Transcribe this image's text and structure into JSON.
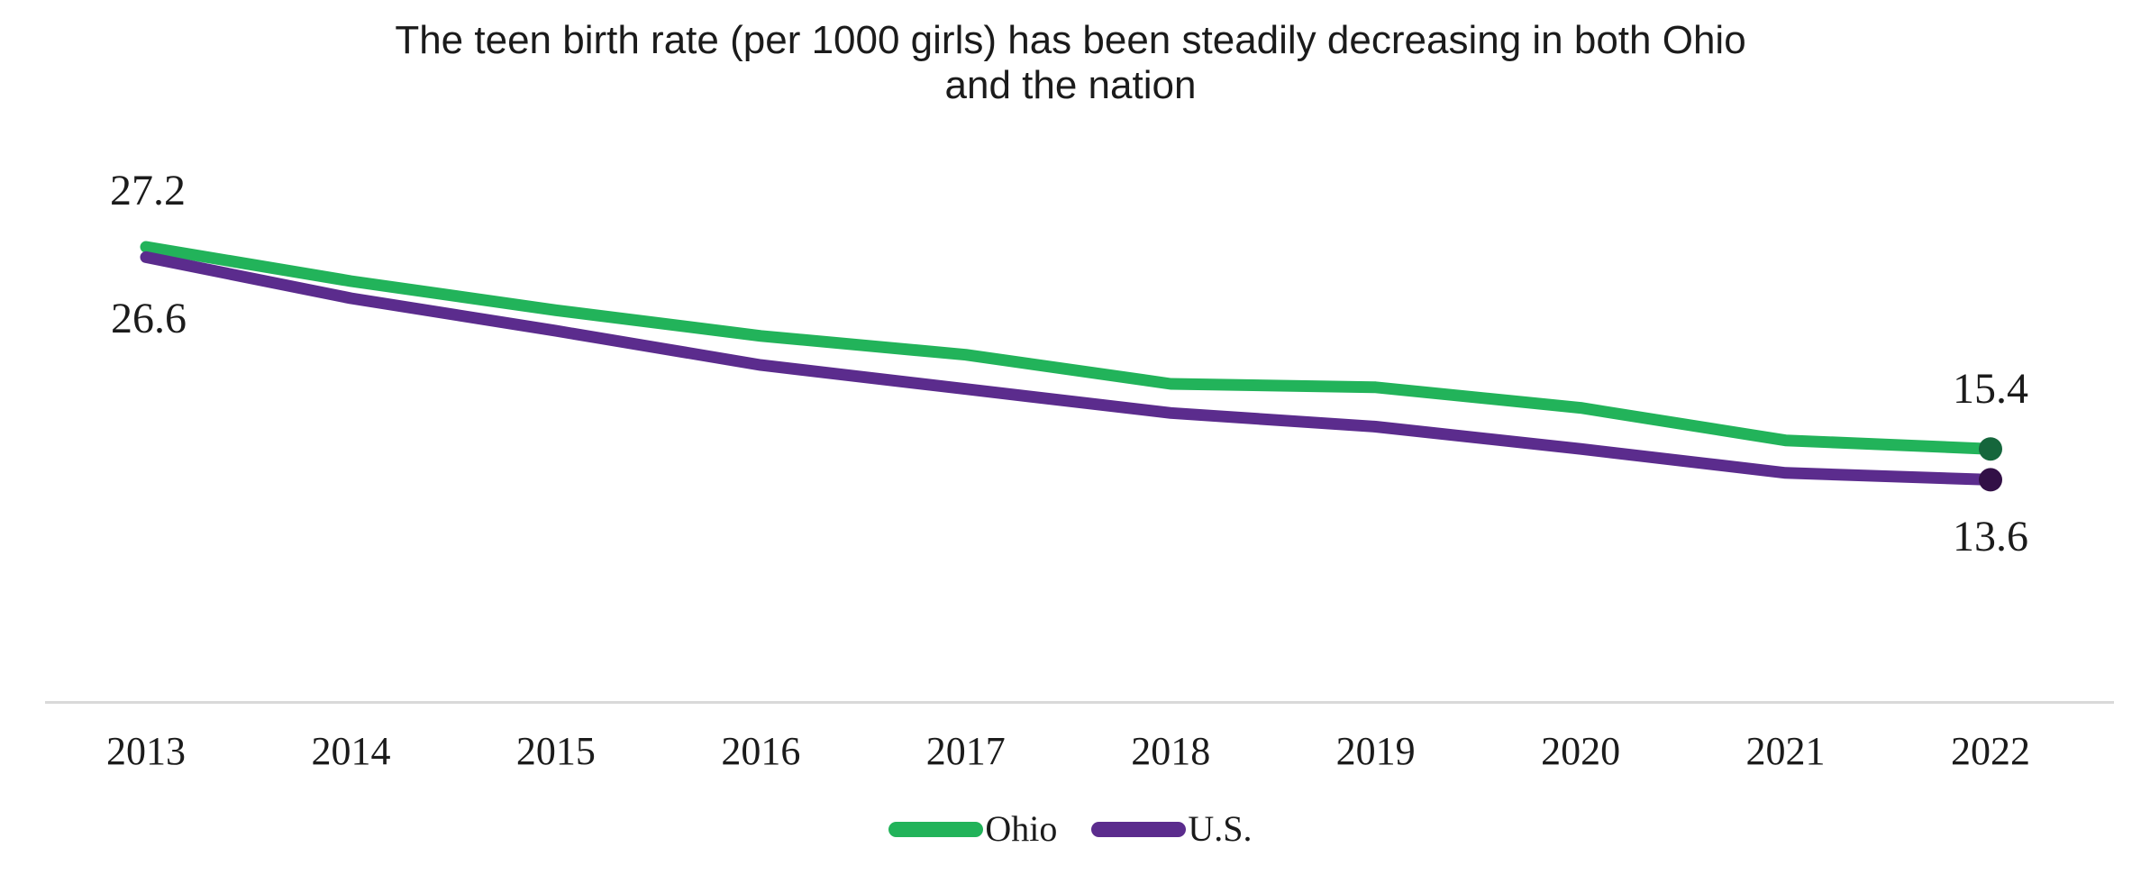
{
  "title": {
    "line1": "The teen birth rate (per 1000 girls) has been steadily decreasing in both Ohio",
    "line2": "and the nation"
  },
  "chart_data": {
    "type": "line",
    "x": [
      2013,
      2014,
      2015,
      2016,
      2017,
      2018,
      2019,
      2020,
      2021,
      2022
    ],
    "series": [
      {
        "name": "Ohio",
        "color": "#22B35A",
        "endpoint_color": "#15663C",
        "values": [
          27.2,
          25.2,
          23.5,
          22.0,
          20.9,
          19.2,
          19.0,
          17.8,
          15.9,
          15.4
        ]
      },
      {
        "name": "U.S.",
        "color": "#5B2C8D",
        "endpoint_color": "#321046",
        "values": [
          26.6,
          24.2,
          22.3,
          20.3,
          18.9,
          17.5,
          16.7,
          15.4,
          14.0,
          13.6
        ]
      }
    ],
    "point_labels": {
      "ohio_2013": "27.2",
      "us_2013": "26.6",
      "ohio_2022": "15.4",
      "us_2022": "13.6"
    },
    "title": "The teen birth rate (per 1000 girls) has been steadily decreasing in both Ohio and the nation",
    "xlabel": "",
    "ylabel": "",
    "ylim": [
      13,
      28
    ],
    "grid": false,
    "y_axis_visible": false,
    "legend_position": "bottom"
  },
  "legend": {
    "items": [
      {
        "label": "Ohio",
        "color": "#22B35A"
      },
      {
        "label": "U.S.",
        "color": "#5B2C8D"
      }
    ]
  },
  "colors": {
    "axis_line": "#d9d9d9",
    "text": "#1b1b1b",
    "background": "#ffffff"
  }
}
